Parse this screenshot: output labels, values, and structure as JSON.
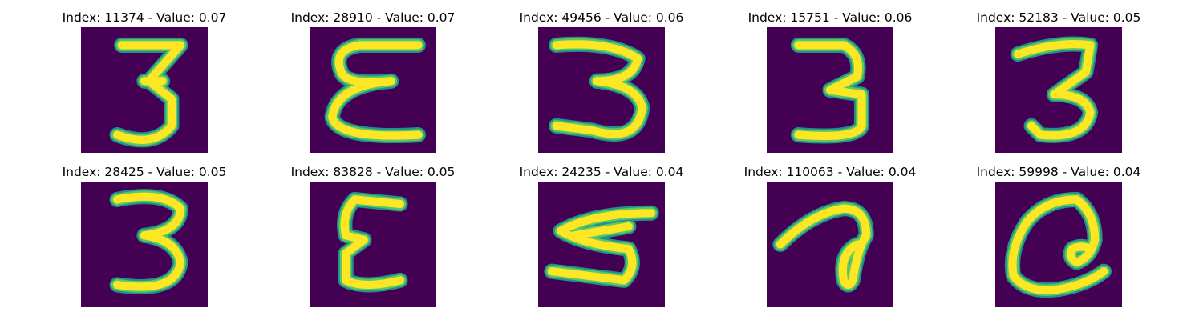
{
  "colors": {
    "background": "#440154",
    "edge_outer": "#21918c",
    "edge_inner": "#5ec962",
    "stroke": "#fde725"
  },
  "panels": [
    {
      "index_label": "Index: 11374",
      "value_label": "Value: 0.07",
      "glyph": "3"
    },
    {
      "index_label": "Index: 28910",
      "value_label": "Value: 0.07",
      "glyph": "Ɛ"
    },
    {
      "index_label": "Index: 49456",
      "value_label": "Value: 0.06",
      "glyph": "3"
    },
    {
      "index_label": "Index: 15751",
      "value_label": "Value: 0.06",
      "glyph": "3"
    },
    {
      "index_label": "Index: 52183",
      "value_label": "Value: 0.05",
      "glyph": "3"
    },
    {
      "index_label": "Index: 28425",
      "value_label": "Value: 0.05",
      "glyph": "3"
    },
    {
      "index_label": "Index: 83828",
      "value_label": "Value: 0.05",
      "glyph": "Ɛ"
    },
    {
      "index_label": "Index: 24235",
      "value_label": "Value: 0.04",
      "glyph": "3"
    },
    {
      "index_label": "Index: 110063",
      "value_label": "Value: 0.04",
      "glyph": "a"
    },
    {
      "index_label": "Index: 59998",
      "value_label": "Value: 0.04",
      "glyph": "a"
    }
  ]
}
